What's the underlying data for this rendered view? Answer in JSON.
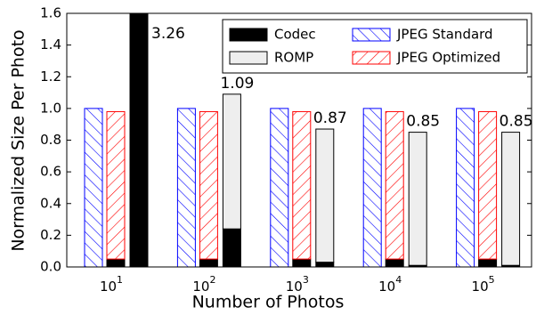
{
  "chart_data": {
    "type": "stacked-grouped-bar",
    "x_label": "Number of Photos",
    "y_label": "Normalized Size Per Photo",
    "categories": [
      {
        "base": "10",
        "sup": "1"
      },
      {
        "base": "10",
        "sup": "2"
      },
      {
        "base": "10",
        "sup": "3"
      },
      {
        "base": "10",
        "sup": "4"
      },
      {
        "base": "10",
        "sup": "5"
      }
    ],
    "series": [
      {
        "name": "Codec",
        "color": "#000000",
        "pattern": null
      },
      {
        "name": "ROMP",
        "color": "#eeeeee",
        "pattern": null
      },
      {
        "name": "JPEG Standard",
        "color": "#0000ff",
        "pattern": "backslash"
      },
      {
        "name": "JPEG Optimized",
        "color": "#ff0000",
        "pattern": "slash"
      }
    ],
    "bars": [
      {
        "segments": [
          {
            "series": 2,
            "values": [
              1.0,
              1.0,
              1.0,
              1.0,
              1.0
            ]
          }
        ]
      },
      {
        "segments": [
          {
            "series": 0,
            "values": [
              0.05,
              0.05,
              0.05,
              0.05,
              0.05
            ]
          },
          {
            "series": 3,
            "values": [
              0.93,
              0.93,
              0.93,
              0.93,
              0.93
            ]
          }
        ]
      },
      {
        "segments": [
          {
            "series": 0,
            "values": [
              3.26,
              0.24,
              0.03,
              0.01,
              0.01
            ]
          },
          {
            "series": 1,
            "values": [
              0,
              0.85,
              0.84,
              0.84,
              0.84
            ]
          }
        ],
        "labels": [
          "3.26",
          "1.09",
          "0.87",
          "0.85",
          "0.85"
        ]
      }
    ],
    "ylim": [
      0,
      1.6
    ],
    "yticks": [
      {
        "value": 0,
        "label": "0.0"
      },
      {
        "value": 0.2,
        "label": "0.2"
      },
      {
        "value": 0.4,
        "label": "0.4"
      },
      {
        "value": 0.6,
        "label": "0.6"
      },
      {
        "value": 0.8,
        "label": "0.8"
      },
      {
        "value": 1,
        "label": "1.0"
      },
      {
        "value": 1.2,
        "label": "1.2"
      },
      {
        "value": 1.4,
        "label": "1.4"
      },
      {
        "value": 1.6,
        "label": "1.6"
      }
    ],
    "legend": "upper right"
  }
}
